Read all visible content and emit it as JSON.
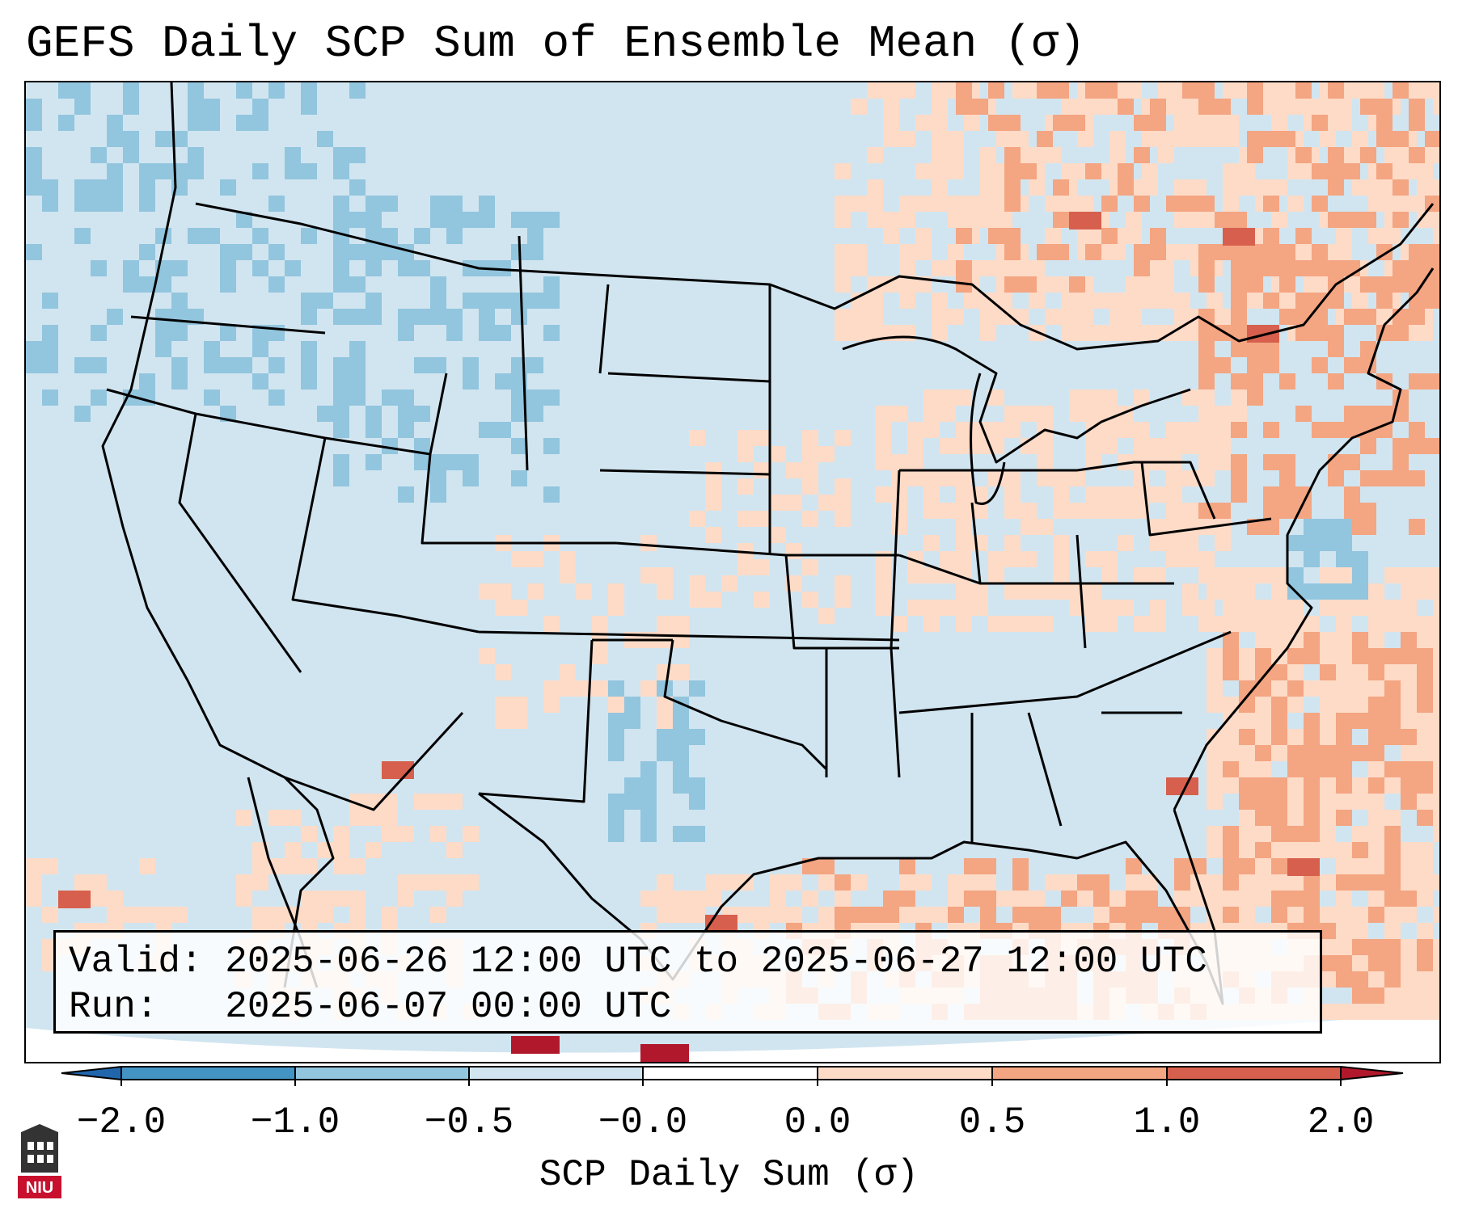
{
  "title": "GEFS Daily SCP Sum of Ensemble Mean (σ)",
  "map": {
    "description_region": "CONUS",
    "colors": {
      "ocean": "#d1e5f0",
      "land_missing": "#ffffff",
      "boundary": "#000000"
    }
  },
  "info_box": {
    "valid_line": "Valid: 2025-06-26 12:00 UTC to 2025-06-27 12:00 UTC",
    "run_line": "Run:   2025-06-07 00:00 UTC"
  },
  "colorbar": {
    "label": "SCP Daily Sum (σ)",
    "ticks": [
      "−2.0",
      "−1.0",
      "−0.5",
      "−0.0",
      "0.0",
      "0.5",
      "1.0",
      "2.0"
    ],
    "bins": [
      {
        "from": "-inf",
        "to": -2.0,
        "color": "#2166ac"
      },
      {
        "from": -2.0,
        "to": -1.0,
        "color": "#4393c3"
      },
      {
        "from": -1.0,
        "to": -0.5,
        "color": "#92c5de"
      },
      {
        "from": -0.5,
        "to": 0.0,
        "color": "#d1e5f0"
      },
      {
        "from": 0.0,
        "to": 0.0,
        "color": "#ffffff"
      },
      {
        "from": 0.0,
        "to": 0.5,
        "color": "#fddbc7"
      },
      {
        "from": 0.5,
        "to": 1.0,
        "color": "#f4a582"
      },
      {
        "from": 1.0,
        "to": 2.0,
        "color": "#d6604d"
      },
      {
        "from": 2.0,
        "to": "inf",
        "color": "#b2182b"
      }
    ]
  },
  "logo": {
    "text": "NIU",
    "name": "niu-logo"
  }
}
